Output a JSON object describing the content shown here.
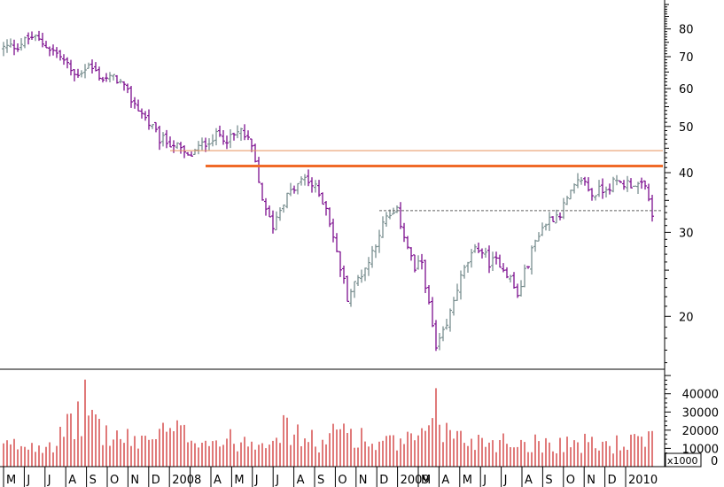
{
  "chart_data": {
    "type": "ohlc",
    "price_axis": {
      "scale": "log",
      "ticks": [
        20,
        30,
        40,
        50,
        60,
        70,
        80
      ],
      "ylim": [
        15.5,
        92
      ]
    },
    "volume_axis": {
      "ticks": [
        0,
        10000,
        20000,
        30000,
        40000
      ],
      "ylim": [
        0,
        52000
      ],
      "unit_label": "x1000"
    },
    "month_labels": [
      "M",
      "J",
      "J",
      "A",
      "S",
      "O",
      "N",
      "D",
      "2008",
      "",
      "A",
      "M",
      "J",
      "J",
      "A",
      "S",
      "O",
      "N",
      "D",
      "2009",
      "M",
      "A",
      "M",
      "J",
      "J",
      "A",
      "S",
      "O",
      "N",
      "D",
      "2010"
    ],
    "series_price": {
      "name": "",
      "anchors": [
        {
          "w": 0,
          "c": 73
        },
        {
          "w": 4,
          "c": 74
        },
        {
          "w": 8,
          "c": 77
        },
        {
          "w": 12,
          "c": 74
        },
        {
          "w": 16,
          "c": 70
        },
        {
          "w": 20,
          "c": 64
        },
        {
          "w": 24,
          "c": 67
        },
        {
          "w": 28,
          "c": 63
        },
        {
          "w": 32,
          "c": 63
        },
        {
          "w": 36,
          "c": 57
        },
        {
          "w": 40,
          "c": 52
        },
        {
          "w": 44,
          "c": 47
        },
        {
          "w": 48,
          "c": 46
        },
        {
          "w": 52,
          "c": 43
        },
        {
          "w": 55,
          "c": 45
        },
        {
          "w": 58,
          "c": 47
        },
        {
          "w": 61,
          "c": 48
        },
        {
          "w": 64,
          "c": 47
        },
        {
          "w": 67,
          "c": 49
        },
        {
          "w": 70,
          "c": 45
        },
        {
          "w": 72,
          "c": 38
        },
        {
          "w": 74,
          "c": 33
        },
        {
          "w": 76,
          "c": 31
        },
        {
          "w": 79,
          "c": 35
        },
        {
          "w": 82,
          "c": 37
        },
        {
          "w": 85,
          "c": 39
        },
        {
          "w": 88,
          "c": 37
        },
        {
          "w": 91,
          "c": 34
        },
        {
          "w": 94,
          "c": 27
        },
        {
          "w": 97,
          "c": 22
        },
        {
          "w": 100,
          "c": 24
        },
        {
          "w": 103,
          "c": 26
        },
        {
          "w": 106,
          "c": 30
        },
        {
          "w": 108,
          "c": 32
        },
        {
          "w": 111,
          "c": 33
        },
        {
          "w": 114,
          "c": 28
        },
        {
          "w": 116,
          "c": 25
        },
        {
          "w": 118,
          "c": 26
        },
        {
          "w": 120,
          "c": 21
        },
        {
          "w": 122,
          "c": 17
        },
        {
          "w": 125,
          "c": 19
        },
        {
          "w": 128,
          "c": 23
        },
        {
          "w": 131,
          "c": 26
        },
        {
          "w": 134,
          "c": 28
        },
        {
          "w": 137,
          "c": 26
        },
        {
          "w": 140,
          "c": 26
        },
        {
          "w": 143,
          "c": 24
        },
        {
          "w": 145,
          "c": 22
        },
        {
          "w": 148,
          "c": 26
        },
        {
          "w": 151,
          "c": 30
        },
        {
          "w": 154,
          "c": 32
        },
        {
          "w": 157,
          "c": 33
        },
        {
          "w": 160,
          "c": 36
        },
        {
          "w": 163,
          "c": 39
        },
        {
          "w": 166,
          "c": 36
        },
        {
          "w": 169,
          "c": 37
        },
        {
          "w": 172,
          "c": 38
        },
        {
          "w": 175,
          "c": 38
        },
        {
          "w": 178,
          "c": 38
        },
        {
          "w": 181,
          "c": 37
        },
        {
          "w": 183,
          "c": 33
        }
      ],
      "volume_anchors": [
        {
          "w": 0,
          "v": 11000
        },
        {
          "w": 15,
          "v": 14000
        },
        {
          "w": 20,
          "v": 24000
        },
        {
          "w": 24,
          "v": 36000
        },
        {
          "w": 28,
          "v": 18000
        },
        {
          "w": 36,
          "v": 14000
        },
        {
          "w": 48,
          "v": 19000
        },
        {
          "w": 60,
          "v": 14000
        },
        {
          "w": 72,
          "v": 15000
        },
        {
          "w": 78,
          "v": 21000
        },
        {
          "w": 90,
          "v": 12000
        },
        {
          "w": 96,
          "v": 22000
        },
        {
          "w": 104,
          "v": 12000
        },
        {
          "w": 112,
          "v": 13000
        },
        {
          "w": 120,
          "v": 16000
        },
        {
          "w": 122,
          "v": 46000
        },
        {
          "w": 124,
          "v": 20000
        },
        {
          "w": 130,
          "v": 15000
        },
        {
          "w": 140,
          "v": 14000
        },
        {
          "w": 150,
          "v": 13000
        },
        {
          "w": 160,
          "v": 13000
        },
        {
          "w": 170,
          "v": 12000
        },
        {
          "w": 183,
          "v": 14000
        }
      ]
    },
    "overlays": [
      {
        "kind": "horizontal_line",
        "value": 44.5,
        "from_week": 47,
        "to_week": 186,
        "color": "#e8905a",
        "style": "thin"
      },
      {
        "kind": "horizontal_line",
        "value": 41.3,
        "from_week": 57,
        "to_week": 186,
        "color": "#f06a28",
        "style": "thick"
      },
      {
        "kind": "horizontal_line",
        "value": 33.3,
        "from_week": 106,
        "to_week": 186,
        "color": "#606060",
        "style": "dashed"
      }
    ],
    "colors": {
      "up": "#7a8f90",
      "down": "#7d0f8f",
      "volume": "#cc2222"
    },
    "grid": false,
    "legend": "none"
  }
}
